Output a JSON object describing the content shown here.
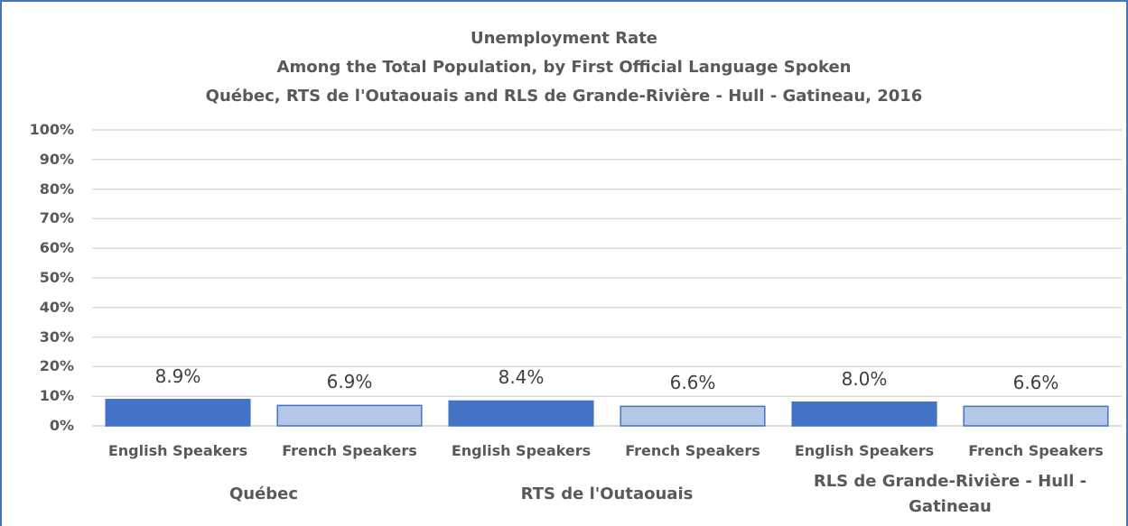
{
  "chart_data": {
    "type": "bar",
    "title": "Unemployment Rate",
    "subtitle": [
      "Among the Total Population, by First Official Language Spoken",
      "Québec, RTS de l'Outaouais and RLS de Grande-Rivière - Hull - Gatineau, 2016"
    ],
    "categories": [
      "English Speakers",
      "French Speakers",
      "English Speakers",
      "French Speakers",
      "English Speakers",
      "French Speakers"
    ],
    "groups": [
      "Québec",
      "RTS de l'Outaouais",
      "RLS de Grande-Rivière - Hull - Gatineau"
    ],
    "values": [
      8.9,
      6.9,
      8.4,
      6.6,
      8.0,
      6.6
    ],
    "value_labels": [
      "8.9%",
      "6.9%",
      "8.4%",
      "6.6%",
      "8.0%",
      "6.6%"
    ],
    "colors": [
      "#4472c4",
      "#b4c7e7",
      "#4472c4",
      "#b4c7e7",
      "#4472c4",
      "#b4c7e7"
    ],
    "ylim": [
      0,
      100
    ],
    "yticks": [
      {
        "value": 0,
        "label": "0%"
      },
      {
        "value": 10,
        "label": "10%"
      },
      {
        "value": 20,
        "label": "20%"
      },
      {
        "value": 30,
        "label": "30%"
      },
      {
        "value": 40,
        "label": "40%"
      },
      {
        "value": 50,
        "label": "50%"
      },
      {
        "value": 60,
        "label": "60%"
      },
      {
        "value": 70,
        "label": "70%"
      },
      {
        "value": 80,
        "label": "80%"
      },
      {
        "value": 90,
        "label": "90%"
      },
      {
        "value": 100,
        "label": "100%"
      }
    ],
    "grid": true
  }
}
